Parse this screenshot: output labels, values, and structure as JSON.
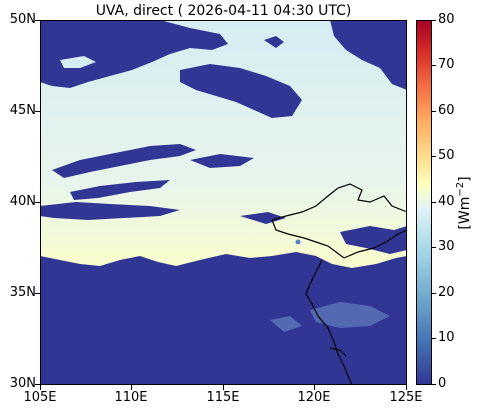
{
  "title": "UVA, direct ( 2026-04-11 04:30 UTC)",
  "map": {
    "lon_range": [
      105,
      125
    ],
    "lat_range": [
      30,
      50
    ],
    "lon_ticks": [
      "105E",
      "110E",
      "115E",
      "120E",
      "125E"
    ],
    "lat_ticks": [
      "50N",
      "45N",
      "40N",
      "35N",
      "30N"
    ],
    "cloud_color": "#313695",
    "clear_sky_north_color": "#d6edf3",
    "clear_sky_south_color": "#fbfdc8",
    "coastline_color": "#000000"
  },
  "colorbar": {
    "label": "[Wm$^{-2}$]",
    "label_display": "[Wm",
    "label_superscript": "−2",
    "label_suffix": "]",
    "ticks": [
      "0",
      "10",
      "20",
      "30",
      "40",
      "50",
      "60",
      "70",
      "80"
    ],
    "range": [
      0,
      80
    ],
    "colormap": "RdYlBu_r"
  }
}
